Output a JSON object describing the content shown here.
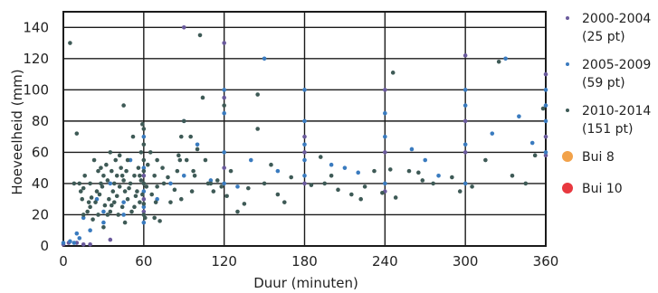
{
  "chart_data": {
    "type": "scatter",
    "xlabel": "Duur (minuten)",
    "ylabel": "Hoeveelheid (mm)",
    "xlim": [
      0,
      360
    ],
    "ylim": [
      0,
      150
    ],
    "xticks": [
      0,
      60,
      120,
      180,
      240,
      300,
      360
    ],
    "yticks": [
      0,
      20,
      40,
      60,
      80,
      100,
      120,
      140
    ],
    "grid": true,
    "legend_position": "right",
    "series": [
      {
        "name": "2000-2004",
        "count_label": "(25 pt)",
        "color": "#6a5a9c",
        "points": [
          [
            0,
            1
          ],
          [
            4,
            2
          ],
          [
            10,
            2
          ],
          [
            15,
            1
          ],
          [
            20,
            1
          ],
          [
            35,
            4
          ],
          [
            60,
            22
          ],
          [
            90,
            140
          ],
          [
            120,
            130
          ],
          [
            180,
            70
          ],
          [
            240,
            60
          ],
          [
            300,
            80
          ],
          [
            360,
            70
          ],
          [
            60,
            30
          ],
          [
            120,
            50
          ],
          [
            180,
            40
          ],
          [
            240,
            35
          ],
          [
            300,
            122
          ],
          [
            360,
            110
          ],
          [
            120,
            95
          ],
          [
            60,
            45
          ],
          [
            180,
            60
          ],
          [
            240,
            100
          ],
          [
            300,
            60
          ],
          [
            360,
            58
          ]
        ]
      },
      {
        "name": "2005-2009",
        "count_label": "(59 pt)",
        "color": "#3a7bbf",
        "points": [
          [
            0,
            2
          ],
          [
            5,
            3
          ],
          [
            8,
            2
          ],
          [
            12,
            5
          ],
          [
            20,
            10
          ],
          [
            30,
            15
          ],
          [
            45,
            20
          ],
          [
            60,
            25
          ],
          [
            60,
            35
          ],
          [
            60,
            50
          ],
          [
            60,
            70
          ],
          [
            90,
            45
          ],
          [
            90,
            80
          ],
          [
            120,
            40
          ],
          [
            120,
            60
          ],
          [
            120,
            85
          ],
          [
            120,
            100
          ],
          [
            150,
            120
          ],
          [
            180,
            45
          ],
          [
            180,
            55
          ],
          [
            180,
            65
          ],
          [
            180,
            80
          ],
          [
            180,
            100
          ],
          [
            210,
            50
          ],
          [
            240,
            40
          ],
          [
            240,
            70
          ],
          [
            240,
            85
          ],
          [
            270,
            55
          ],
          [
            300,
            40
          ],
          [
            300,
            65
          ],
          [
            300,
            90
          ],
          [
            300,
            100
          ],
          [
            330,
            120
          ],
          [
            360,
            60
          ],
          [
            360,
            80
          ],
          [
            360,
            90
          ],
          [
            360,
            100
          ],
          [
            60,
            15
          ],
          [
            30,
            22
          ],
          [
            45,
            28
          ],
          [
            15,
            18
          ],
          [
            25,
            30
          ],
          [
            35,
            40
          ],
          [
            50,
            55
          ],
          [
            70,
            30
          ],
          [
            80,
            40
          ],
          [
            100,
            65
          ],
          [
            110,
            42
          ],
          [
            130,
            38
          ],
          [
            140,
            55
          ],
          [
            160,
            48
          ],
          [
            200,
            52
          ],
          [
            220,
            47
          ],
          [
            260,
            62
          ],
          [
            280,
            45
          ],
          [
            320,
            72
          ],
          [
            340,
            83
          ],
          [
            350,
            66
          ],
          [
            10,
            8
          ]
        ]
      },
      {
        "name": "2010-2014",
        "count_label": "(151 pt)",
        "color": "#3e5a56",
        "points": [
          [
            5,
            130
          ],
          [
            10,
            72
          ],
          [
            12,
            40
          ],
          [
            13,
            35
          ],
          [
            14,
            30
          ],
          [
            15,
            20
          ],
          [
            15,
            37
          ],
          [
            18,
            22
          ],
          [
            19,
            28
          ],
          [
            20,
            40
          ],
          [
            20,
            25
          ],
          [
            21,
            31
          ],
          [
            22,
            17
          ],
          [
            24,
            28
          ],
          [
            25,
            35
          ],
          [
            26,
            20
          ],
          [
            27,
            33
          ],
          [
            28,
            40
          ],
          [
            28,
            50
          ],
          [
            29,
            38
          ],
          [
            30,
            45
          ],
          [
            30,
            12
          ],
          [
            31,
            26
          ],
          [
            32,
            52
          ],
          [
            33,
            42
          ],
          [
            34,
            30
          ],
          [
            35,
            22
          ],
          [
            35,
            60
          ],
          [
            36,
            48
          ],
          [
            37,
            35
          ],
          [
            38,
            40
          ],
          [
            38,
            28
          ],
          [
            39,
            55
          ],
          [
            40,
            32
          ],
          [
            40,
            45
          ],
          [
            41,
            20
          ],
          [
            42,
            38
          ],
          [
            43,
            50
          ],
          [
            44,
            25
          ],
          [
            45,
            42
          ],
          [
            45,
            90
          ],
          [
            46,
            35
          ],
          [
            47,
            48
          ],
          [
            48,
            30
          ],
          [
            48,
            55
          ],
          [
            50,
            40
          ],
          [
            51,
            22
          ],
          [
            52,
            70
          ],
          [
            53,
            45
          ],
          [
            55,
            35
          ],
          [
            56,
            50
          ],
          [
            57,
            28
          ],
          [
            58,
            42
          ],
          [
            58,
            60
          ],
          [
            59,
            33
          ],
          [
            59,
            78
          ],
          [
            60,
            20
          ],
          [
            60,
            40
          ],
          [
            60,
            55
          ],
          [
            60,
            65
          ],
          [
            60,
            48
          ],
          [
            60,
            75
          ],
          [
            60,
            27
          ],
          [
            62,
            38
          ],
          [
            65,
            60
          ],
          [
            68,
            45
          ],
          [
            68,
            18
          ],
          [
            70,
            38
          ],
          [
            70,
            55
          ],
          [
            72,
            16
          ],
          [
            75,
            40
          ],
          [
            80,
            28
          ],
          [
            85,
            48
          ],
          [
            86,
            58
          ],
          [
            87,
            55
          ],
          [
            88,
            70
          ],
          [
            88,
            30
          ],
          [
            90,
            80
          ],
          [
            95,
            70
          ],
          [
            96,
            35
          ],
          [
            98,
            45
          ],
          [
            100,
            62
          ],
          [
            102,
            135
          ],
          [
            104,
            95
          ],
          [
            108,
            40
          ],
          [
            110,
            40
          ],
          [
            115,
            42
          ],
          [
            118,
            38
          ],
          [
            120,
            90
          ],
          [
            122,
            32
          ],
          [
            130,
            22
          ],
          [
            135,
            27
          ],
          [
            145,
            75
          ],
          [
            145,
            97
          ],
          [
            150,
            40
          ],
          [
            160,
            33
          ],
          [
            165,
            28
          ],
          [
            192,
            57
          ],
          [
            195,
            40
          ],
          [
            205,
            36
          ],
          [
            215,
            33
          ],
          [
            222,
            30
          ],
          [
            232,
            48
          ],
          [
            238,
            34
          ],
          [
            244,
            49
          ],
          [
            246,
            111
          ],
          [
            248,
            31
          ],
          [
            258,
            48
          ],
          [
            268,
            42
          ],
          [
            276,
            40
          ],
          [
            290,
            44
          ],
          [
            296,
            35
          ],
          [
            305,
            38
          ],
          [
            315,
            55
          ],
          [
            325,
            118
          ],
          [
            335,
            45
          ],
          [
            345,
            40
          ],
          [
            352,
            58
          ],
          [
            358,
            88
          ],
          [
            8,
            40
          ],
          [
            16,
            45
          ],
          [
            23,
            55
          ],
          [
            26,
            48
          ],
          [
            33,
            20
          ],
          [
            36,
            26
          ],
          [
            42,
            58
          ],
          [
            44,
            45
          ],
          [
            46,
            15
          ],
          [
            49,
            37
          ],
          [
            53,
            25
          ],
          [
            54,
            32
          ],
          [
            57,
            45
          ],
          [
            61,
            18
          ],
          [
            63,
            52
          ],
          [
            66,
            33
          ],
          [
            69,
            28
          ],
          [
            74,
            50
          ],
          [
            78,
            44
          ],
          [
            83,
            36
          ],
          [
            92,
            55
          ],
          [
            97,
            48
          ],
          [
            106,
            55
          ],
          [
            112,
            35
          ],
          [
            125,
            48
          ],
          [
            138,
            37
          ],
          [
            155,
            52
          ],
          [
            170,
            44
          ],
          [
            185,
            39
          ],
          [
            200,
            45
          ],
          [
            225,
            38
          ],
          [
            265,
            47
          ]
        ]
      },
      {
        "name": "Bui 8",
        "count_label": "",
        "color": "#f2a24a",
        "points": []
      },
      {
        "name": "Bui 10",
        "count_label": "",
        "color": "#e8383f",
        "points": []
      }
    ]
  }
}
